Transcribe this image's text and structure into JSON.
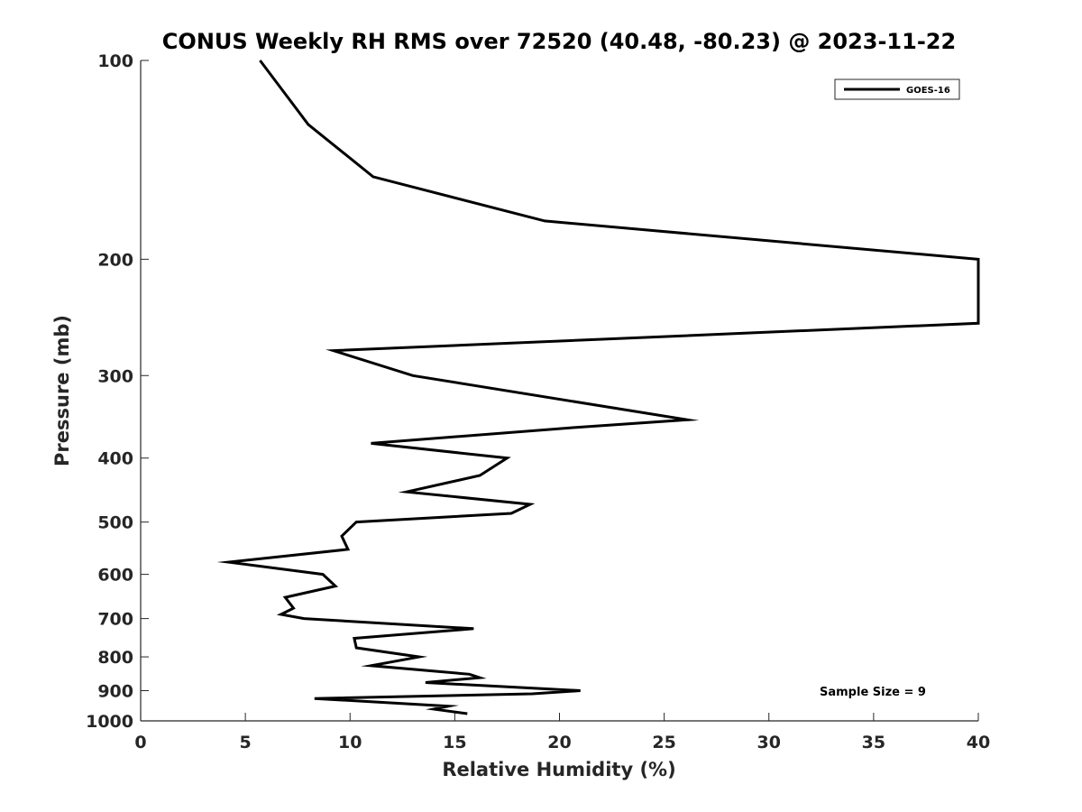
{
  "chart_data": {
    "type": "line",
    "title": "CONUS Weekly RH RMS over 72520 (40.48, -80.23) @ 2023-11-22",
    "xlabel": "Relative Humidity (%)",
    "ylabel": "Pressure (mb)",
    "xlim": [
      0,
      40
    ],
    "ylim": [
      100,
      1000
    ],
    "yscale": "log",
    "y_reversed": true,
    "grid": false,
    "legend_position": "top-right",
    "x_ticks": [
      0,
      5,
      10,
      15,
      20,
      25,
      30,
      35,
      40
    ],
    "y_ticks": [
      100,
      200,
      300,
      400,
      500,
      600,
      700,
      800,
      900,
      1000
    ],
    "series": [
      {
        "name": "GOES-16",
        "color": "#000000",
        "points": [
          {
            "x": 5.7,
            "y": 100
          },
          {
            "x": 8.0,
            "y": 125
          },
          {
            "x": 11.1,
            "y": 150
          },
          {
            "x": 19.3,
            "y": 175
          },
          {
            "x": 40.0,
            "y": 200
          },
          {
            "x": 40.0,
            "y": 250
          },
          {
            "x": 9.2,
            "y": 275
          },
          {
            "x": 13.0,
            "y": 300
          },
          {
            "x": 26.1,
            "y": 350
          },
          {
            "x": 20.5,
            "y": 360
          },
          {
            "x": 11.0,
            "y": 380
          },
          {
            "x": 17.5,
            "y": 400
          },
          {
            "x": 16.2,
            "y": 425
          },
          {
            "x": 12.7,
            "y": 450
          },
          {
            "x": 18.6,
            "y": 470
          },
          {
            "x": 17.7,
            "y": 485
          },
          {
            "x": 10.3,
            "y": 500
          },
          {
            "x": 9.6,
            "y": 525
          },
          {
            "x": 9.9,
            "y": 550
          },
          {
            "x": 4.2,
            "y": 575
          },
          {
            "x": 8.7,
            "y": 600
          },
          {
            "x": 9.3,
            "y": 625
          },
          {
            "x": 6.9,
            "y": 650
          },
          {
            "x": 7.3,
            "y": 675
          },
          {
            "x": 6.7,
            "y": 690
          },
          {
            "x": 7.8,
            "y": 700
          },
          {
            "x": 15.9,
            "y": 725
          },
          {
            "x": 10.2,
            "y": 750
          },
          {
            "x": 10.3,
            "y": 775
          },
          {
            "x": 13.3,
            "y": 800
          },
          {
            "x": 11.0,
            "y": 825
          },
          {
            "x": 15.7,
            "y": 850
          },
          {
            "x": 16.2,
            "y": 860
          },
          {
            "x": 13.6,
            "y": 875
          },
          {
            "x": 21.0,
            "y": 900
          },
          {
            "x": 18.7,
            "y": 910
          },
          {
            "x": 8.3,
            "y": 925
          },
          {
            "x": 14.7,
            "y": 950
          },
          {
            "x": 14.0,
            "y": 960
          },
          {
            "x": 15.6,
            "y": 975
          }
        ]
      }
    ],
    "annotations": [
      {
        "text": "Sample Size = 9",
        "position": "bottom-right"
      }
    ]
  }
}
